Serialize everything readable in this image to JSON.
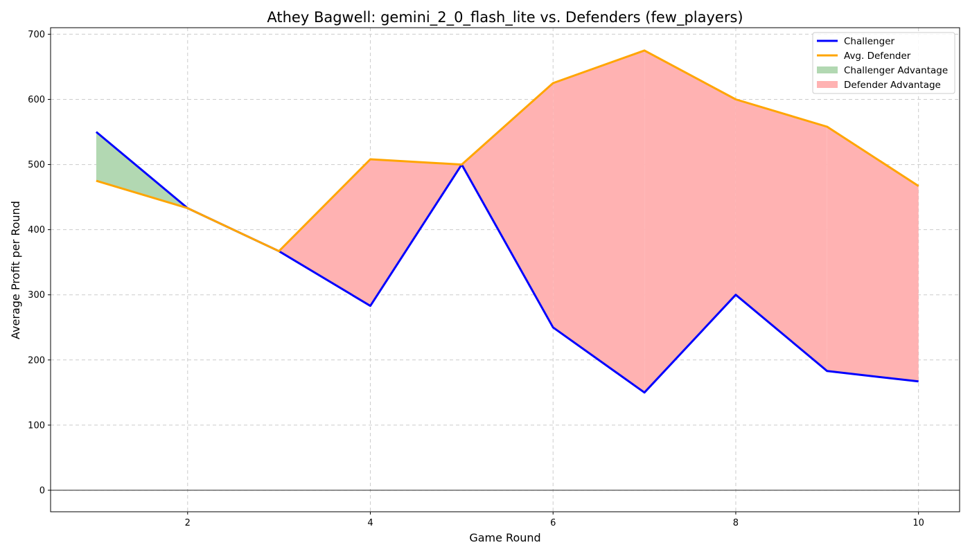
{
  "chart_data": {
    "type": "area",
    "title": "Athey Bagwell: gemini_2_0_flash_lite vs. Defenders (few_players)",
    "xlabel": "Game Round",
    "ylabel": "Average Profit per Round",
    "x": [
      1,
      2,
      3,
      4,
      5,
      6,
      7,
      8,
      9,
      10
    ],
    "xlim": [
      0.5,
      10.45
    ],
    "ylim": [
      -33,
      710
    ],
    "x_ticks": [
      "2",
      "4",
      "6",
      "8",
      "10"
    ],
    "y_ticks": [
      "0",
      "100",
      "200",
      "300",
      "400",
      "500",
      "600",
      "700"
    ],
    "grid": true,
    "legend_position": "top-right",
    "series": [
      {
        "name": "Challenger",
        "color": "#0000ff",
        "values": [
          550,
          433,
          367,
          283,
          500,
          250,
          150,
          300,
          183,
          167
        ]
      },
      {
        "name": "Avg. Defender",
        "color": "#ffa500",
        "values": [
          475,
          433,
          367,
          508,
          500,
          625,
          675,
          600,
          558,
          467
        ]
      }
    ],
    "fills": [
      {
        "name": "Challenger Advantage",
        "color": "#b2d8b2"
      },
      {
        "name": "Defender Advantage",
        "color": "#ffb2b2"
      }
    ]
  }
}
